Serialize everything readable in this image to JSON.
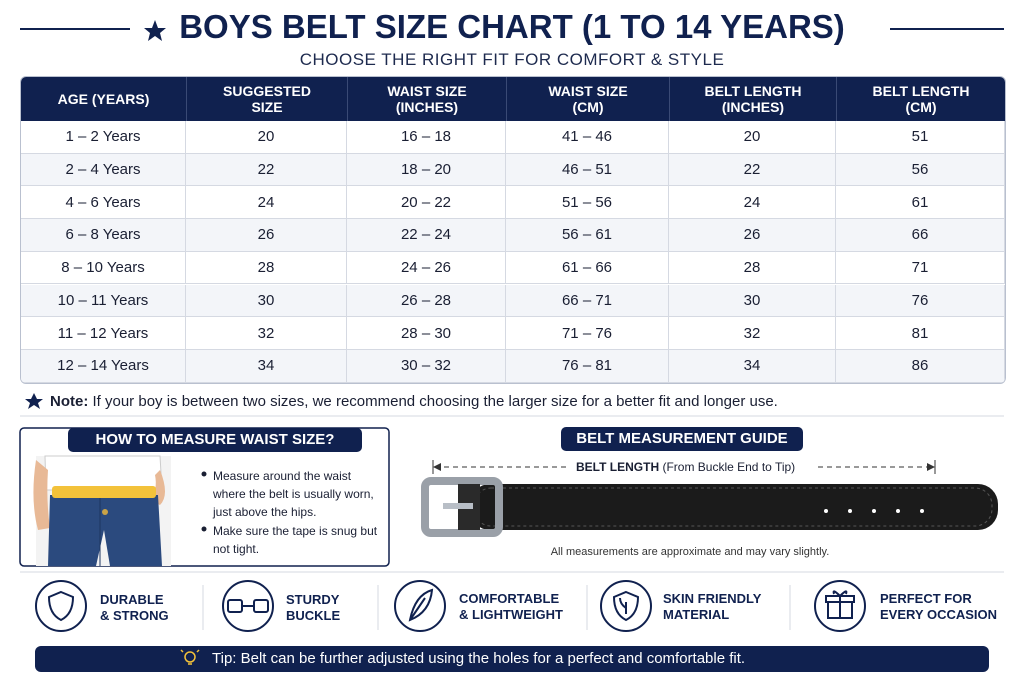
{
  "header": {
    "title": "BOYS BELT SIZE CHART (1 TO 14 YEARS)",
    "subtitle": "CHOOSE THE RIGHT FIT FOR COMFORT & STYLE"
  },
  "table": {
    "columns": [
      "AGE (YEARS)",
      "SUGGESTED\nSIZE",
      "WAIST SIZE\n(INCHES)",
      "WAIST SIZE\n(CM)",
      "BELT LENGTH\n(INCHES)",
      "BELT LENGTH\n(CM)"
    ],
    "rows": [
      [
        "1 – 2 Years",
        "20",
        "16 – 18",
        "41 – 46",
        "20",
        "51"
      ],
      [
        "2 – 4 Years",
        "22",
        "18 – 20",
        "46 – 51",
        "22",
        "56"
      ],
      [
        "4 – 6 Years",
        "24",
        "20 – 22",
        "51 – 56",
        "24",
        "61"
      ],
      [
        "6 – 8 Years",
        "26",
        "22 – 24",
        "56 – 61",
        "26",
        "66"
      ],
      [
        "8 – 10 Years",
        "28",
        "24 – 26",
        "61 – 66",
        "28",
        "71"
      ],
      [
        "10 – 11 Years",
        "30",
        "26 – 28",
        "66 – 71",
        "30",
        "76"
      ],
      [
        "11 – 12 Years",
        "32",
        "28 – 30",
        "71 – 76",
        "32",
        "81"
      ],
      [
        "12 – 14 Years",
        "34",
        "30 – 32",
        "76 – 81",
        "34",
        "86"
      ]
    ]
  },
  "note": {
    "label": "Note:",
    "text": "If your boy is between two sizes, we recommend choosing the larger size for a better fit and longer use."
  },
  "measure": {
    "title": "HOW TO MEASURE WAIST SIZE?",
    "bullets": [
      "Measure around the waist where the belt is usually worn, just above the hips.",
      "Make sure the tape is snug but not tight."
    ]
  },
  "guide": {
    "title": "BELT MEASUREMENT GUIDE",
    "length_label": "BELT LENGTH",
    "length_detail": "(From Buckle End to Tip)",
    "disclaimer": "All measurements are approximate and may vary slightly."
  },
  "features": [
    "DURABLE\n& STRONG",
    "STURDY\nBUCKLE",
    "COMFORTABLE\n& LIGHTWEIGHT",
    "SKIN FRIENDLY\nMATERIAL",
    "PERFECT FOR\nEVERY OCCASION"
  ],
  "tip": "Tip: Belt can be further adjusted using the holes for a perfect and comfortable fit."
}
